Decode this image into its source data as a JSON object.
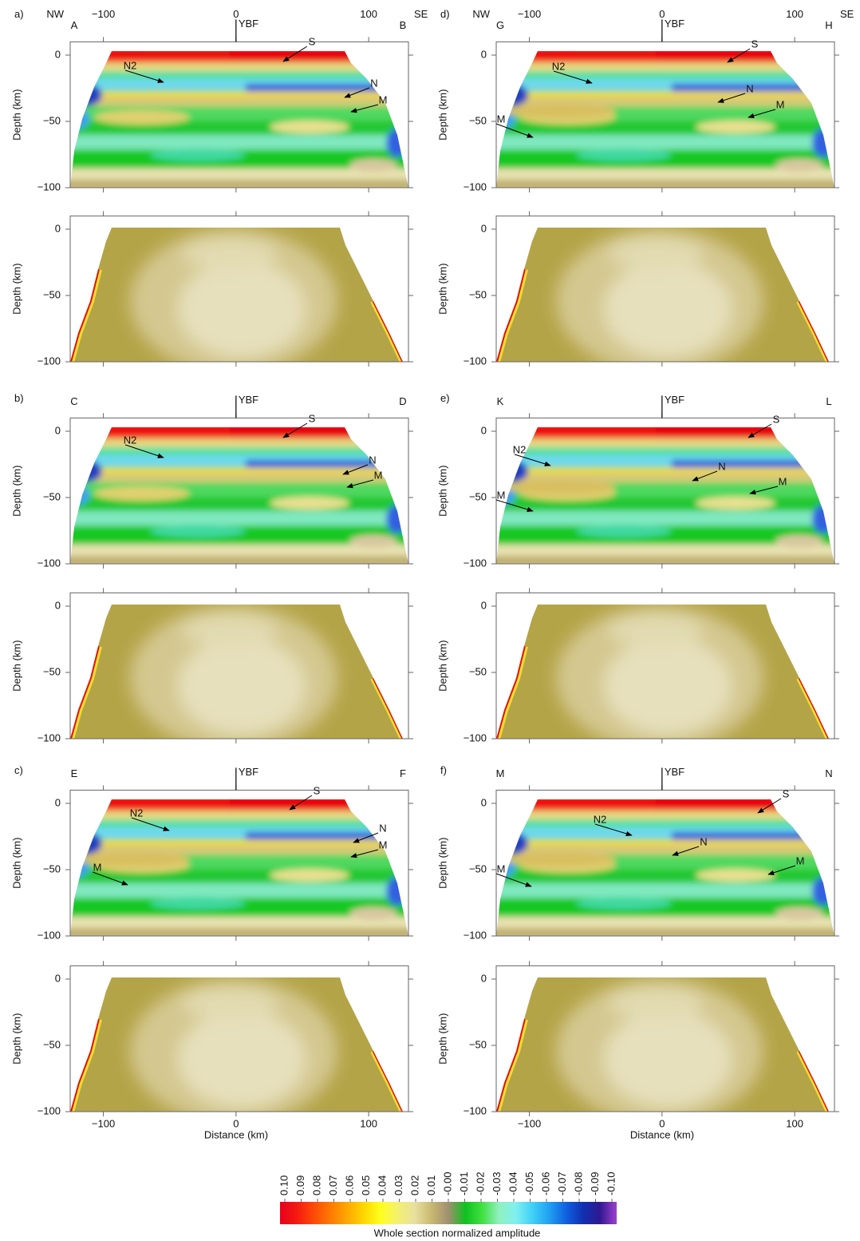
{
  "panels": [
    {
      "label": "a)",
      "start": "A",
      "end": "B",
      "fault": "YBF",
      "compass": [
        "NW",
        "SE"
      ],
      "annotations": [
        "S",
        "N2",
        "N",
        "M"
      ]
    },
    {
      "label": "b)",
      "start": "C",
      "end": "D",
      "fault": "YBF",
      "annotations": [
        "S",
        "N2",
        "N",
        "M"
      ]
    },
    {
      "label": "c)",
      "start": "E",
      "end": "F",
      "fault": "YBF",
      "annotations": [
        "S",
        "N2",
        "N",
        "M",
        "M"
      ]
    },
    {
      "label": "d)",
      "start": "G",
      "end": "H",
      "fault": "YBF",
      "compass": [
        "NW",
        "SE"
      ],
      "annotations": [
        "S",
        "N2",
        "N",
        "M",
        "M"
      ]
    },
    {
      "label": "e)",
      "start": "K",
      "end": "L",
      "fault": "YBF",
      "annotations": [
        "S",
        "N2",
        "N",
        "M",
        "M"
      ]
    },
    {
      "label": "f)",
      "start": "M",
      "end": "N",
      "fault": "YBF",
      "annotations": [
        "S",
        "N2",
        "N",
        "M",
        "M"
      ]
    }
  ],
  "axes": {
    "xlabel": "Distance (km)",
    "ylabel": "Depth (km)",
    "xlim": [
      -125,
      130
    ],
    "ylim": [
      -100,
      10
    ],
    "xticks": [
      {
        "value": -100,
        "label": "−100"
      },
      0,
      100
    ],
    "yticks": [
      0,
      {
        "value": -50,
        "label": "−50"
      },
      {
        "value": -100,
        "label": "−100"
      }
    ]
  },
  "colorbar": {
    "label": "Whole section normalized amplitude",
    "ticks": [
      {
        "value": 0.1,
        "label": "0.10"
      },
      0.09,
      0.08,
      0.07,
      0.06,
      0.05,
      0.04,
      0.03,
      0.02,
      0.01,
      {
        "value": 0,
        "label": "-0.00"
      },
      -0.01,
      -0.02,
      -0.03,
      -0.04,
      -0.05,
      -0.06,
      -0.07,
      -0.08,
      -0.09,
      {
        "value": -0.1,
        "label": "-0.10"
      }
    ],
    "colors": [
      "#e8001c",
      "#f41a10",
      "#ff4a08",
      "#ff7a00",
      "#ffa800",
      "#ffd800",
      "#ffff20",
      "#f4f070",
      "#e8e0a0",
      "#c8b870",
      "#a09070",
      "#10c020",
      "#40e040",
      "#90f0c0",
      "#80f0f0",
      "#40d0f8",
      "#20a0f0",
      "#1060e0",
      "#1030b0",
      "#301890",
      "#a040d0"
    ]
  }
}
